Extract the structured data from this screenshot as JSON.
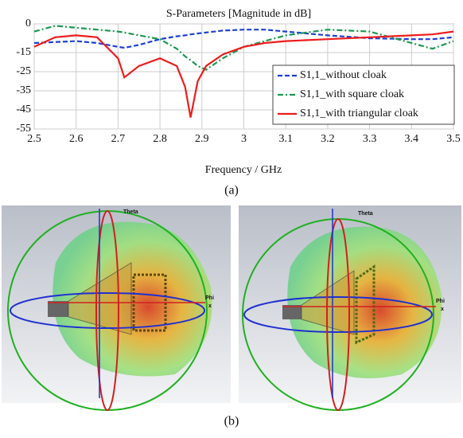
{
  "chart_data": {
    "type": "line",
    "title": "S-Parameters [Magnitude in dB]",
    "x_label": "Frequency / GHz",
    "x": [
      2.5,
      2.55,
      2.6,
      2.65,
      2.7,
      2.715,
      2.75,
      2.8,
      2.84,
      2.86,
      2.873,
      2.89,
      2.91,
      2.95,
      3.0,
      3.05,
      3.1,
      3.2,
      3.3,
      3.4,
      3.45,
      3.5
    ],
    "series": [
      {
        "name": "S1,1_without cloak",
        "color": "#1f3fd8",
        "dash": "dashed",
        "values": [
          -10,
          -9.5,
          -9,
          -10,
          -12,
          -12.5,
          -11,
          -8,
          -6.5,
          -6,
          -5.5,
          -5,
          -4.5,
          -3.5,
          -3,
          -3,
          -4,
          -6,
          -7.5,
          -8,
          -8,
          -7
        ]
      },
      {
        "name": "S1,1_with square cloak",
        "color": "#1a9a50",
        "dash": "dashdot",
        "values": [
          -4,
          -1,
          -2,
          -3,
          -4,
          -4.5,
          -6,
          -8,
          -13,
          -17,
          -19,
          -22,
          -24,
          -18,
          -12,
          -9,
          -6,
          -3,
          -4,
          -10,
          -13,
          -9
        ]
      },
      {
        "name": "S1,1_with triangular cloak",
        "color": "#ee1c1c",
        "dash": "solid",
        "values": [
          -12,
          -7,
          -6,
          -7,
          -18,
          -28,
          -22,
          -18,
          -22,
          -33,
          -49,
          -30,
          -22,
          -16,
          -12,
          -10,
          -9,
          -8,
          -7,
          -6,
          -5.5,
          -4
        ]
      }
    ],
    "xlim": [
      2.5,
      3.5
    ],
    "xticks": [
      2.5,
      2.6,
      2.7,
      2.8,
      2.9,
      3,
      3.1,
      3.2,
      3.3,
      3.4,
      3.5
    ],
    "ylim": [
      -55,
      0
    ],
    "yticks": [
      0,
      -15,
      -25,
      -35,
      -45,
      -55
    ],
    "grid": true,
    "legend": "right"
  },
  "captions": [
    "(a)",
    "(b)"
  ],
  "panels": [
    {
      "labels": [
        "Theta",
        "Phi",
        "x"
      ]
    },
    {
      "labels": [
        "Theta",
        "Phi",
        "x"
      ]
    }
  ]
}
